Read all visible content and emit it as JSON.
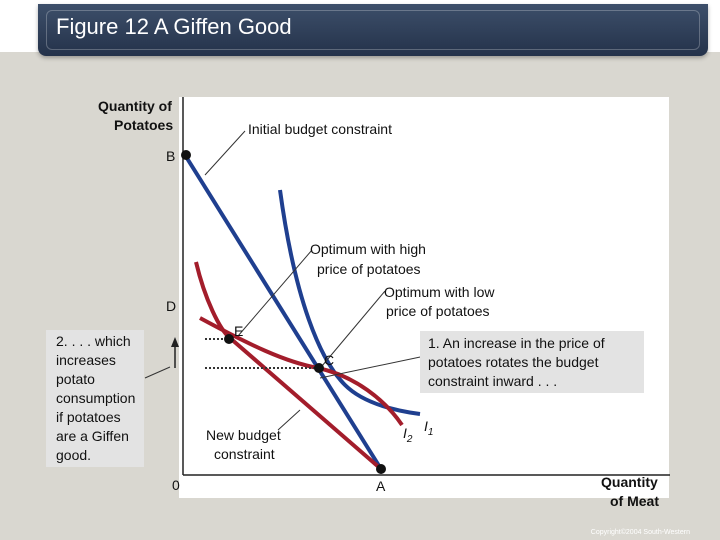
{
  "title": "Figure 12 A Giffen Good",
  "axes": {
    "y_label_line1": "Quantity of",
    "y_label_line2": "Potatoes",
    "x_label_line1": "Quantity",
    "x_label_line2": "of Meat",
    "origin": "0"
  },
  "points": {
    "b": "B",
    "d": "D",
    "a": "A",
    "e": "E",
    "c": "C"
  },
  "labels": {
    "initial_budget": "Initial budget constraint",
    "opt_high_line1": "Optimum with high",
    "opt_high_line2": "price of potatoes",
    "opt_low_line1": "Optimum with low",
    "opt_low_line2": "price of potatoes",
    "new_budget_line1": "New budget",
    "new_budget_line2": "constraint",
    "i1_base": "I",
    "i1_sub": "1",
    "i2_base": "I",
    "i2_sub": "2"
  },
  "callouts": {
    "left": [
      "2. . . . which",
      "increases",
      "potato",
      "consumption",
      "if potatoes",
      "are a Giffen",
      "good."
    ],
    "right": [
      "1. An increase in the price of",
      "potatoes rotates the budget",
      "constraint inward . . ."
    ]
  },
  "copyright": "Copyright©2004 South-Western",
  "colors": {
    "budget_line": "#1f3f8f",
    "indifference_curve": "#a31d2b",
    "title_bar": "#2c3b56"
  }
}
